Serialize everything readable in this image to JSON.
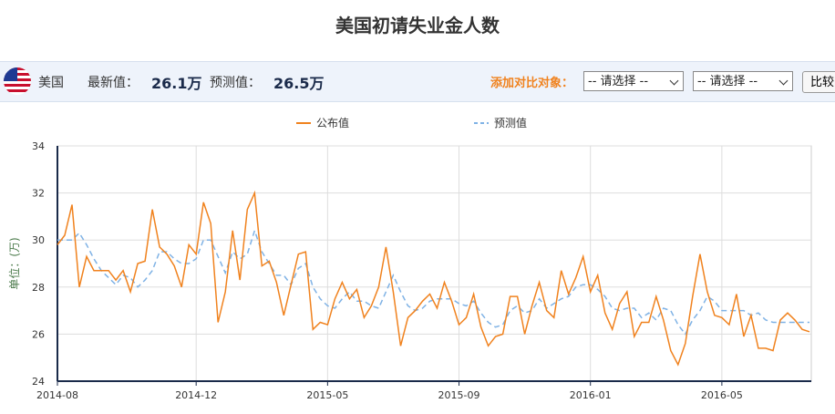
{
  "header": {
    "title": "美国初请失业金人数",
    "country": "美国",
    "latest_label": "最新值：",
    "latest_value": "26.1万",
    "forecast_label": "预测值：",
    "forecast_value": "26.5万",
    "compare_label": "添加对比对象：",
    "select_placeholder": "-- 请选择 --",
    "compare_button": "比较"
  },
  "chart_data": {
    "type": "line",
    "y_label": "单位：(万)",
    "categories": [
      "2014-08",
      null,
      null,
      null,
      null,
      null,
      null,
      null,
      null,
      null,
      null,
      null,
      null,
      null,
      null,
      null,
      null,
      null,
      null,
      "2014-12",
      null,
      null,
      null,
      null,
      null,
      null,
      null,
      null,
      null,
      null,
      null,
      null,
      null,
      null,
      null,
      null,
      null,
      "2015-05",
      null,
      null,
      null,
      null,
      null,
      null,
      null,
      null,
      null,
      null,
      null,
      null,
      null,
      null,
      null,
      null,
      null,
      "2015-09",
      null,
      null,
      null,
      null,
      null,
      null,
      null,
      null,
      null,
      null,
      null,
      null,
      null,
      null,
      null,
      null,
      null,
      "2016-01",
      null,
      null,
      null,
      null,
      null,
      null,
      null,
      null,
      null,
      null,
      null,
      null,
      null,
      null,
      null,
      null,
      null,
      "2016-05",
      null,
      null,
      null,
      null,
      null,
      null,
      null,
      null,
      null,
      null,
      null,
      null
    ],
    "series": [
      {
        "name": "公布值",
        "color": "#f0821e",
        "dashed": false,
        "values": [
          29.8,
          30.2,
          31.5,
          28.0,
          29.3,
          28.7,
          28.7,
          28.7,
          28.3,
          28.7,
          27.8,
          29.0,
          29.1,
          31.3,
          29.7,
          29.4,
          28.9,
          28.0,
          29.8,
          29.4,
          31.6,
          30.7,
          26.5,
          27.8,
          30.4,
          28.3,
          31.3,
          32.0,
          28.9,
          29.1,
          28.2,
          26.8,
          28.1,
          29.4,
          29.5,
          26.2,
          26.5,
          26.4,
          27.5,
          28.2,
          27.5,
          27.9,
          26.7,
          27.2,
          28.0,
          29.7,
          27.8,
          25.5,
          26.7,
          27.0,
          27.4,
          27.7,
          27.1,
          28.2,
          27.4,
          26.4,
          26.7,
          27.7,
          26.3,
          25.5,
          25.9,
          26.0,
          27.6,
          27.6,
          26.0,
          27.2,
          28.2,
          27.0,
          26.7,
          28.7,
          27.7,
          28.4,
          29.3,
          27.8,
          28.5,
          26.9,
          26.2,
          27.3,
          27.8,
          25.9,
          26.5,
          26.5,
          27.6,
          26.6,
          25.3,
          24.7,
          25.6,
          27.6,
          29.4,
          27.8,
          26.8,
          26.7,
          26.4,
          27.7,
          25.9,
          26.8,
          25.4,
          25.4,
          25.3,
          26.6,
          26.9,
          26.6,
          26.2,
          26.1
        ]
      },
      {
        "name": "预测值",
        "color": "#7fb2e5",
        "dashed": true,
        "values": [
          30.0,
          30.0,
          30.0,
          30.3,
          29.8,
          29.2,
          28.7,
          28.4,
          28.1,
          28.5,
          28.4,
          28.0,
          28.3,
          28.7,
          29.5,
          29.5,
          29.2,
          29.0,
          29.0,
          29.2,
          30.0,
          30.0,
          29.3,
          28.6,
          29.5,
          29.2,
          29.4,
          30.4,
          29.5,
          29.0,
          28.5,
          28.5,
          28.1,
          28.8,
          29.0,
          28.0,
          27.5,
          27.2,
          27.1,
          27.5,
          27.8,
          27.4,
          27.4,
          27.2,
          27.1,
          27.8,
          28.5,
          27.8,
          27.2,
          27.0,
          27.1,
          27.4,
          27.5,
          27.5,
          27.5,
          27.3,
          27.2,
          27.4,
          26.9,
          26.5,
          26.3,
          26.4,
          27.0,
          27.2,
          26.9,
          27.0,
          27.5,
          27.1,
          27.3,
          27.5,
          27.6,
          28.0,
          28.1,
          28.1,
          27.9,
          27.6,
          27.1,
          27.0,
          27.1,
          27.1,
          26.7,
          26.9,
          26.6,
          27.1,
          27.0,
          26.4,
          26.0,
          26.6,
          27.0,
          27.6,
          27.4,
          27.0,
          27.0,
          27.0,
          27.0,
          26.8,
          26.9,
          26.6,
          26.5,
          26.5,
          26.5,
          26.5,
          26.5,
          26.5
        ]
      }
    ],
    "ylim": [
      24,
      34
    ],
    "yticks": [
      24,
      26,
      28,
      30,
      32,
      34
    ],
    "grid": true
  }
}
